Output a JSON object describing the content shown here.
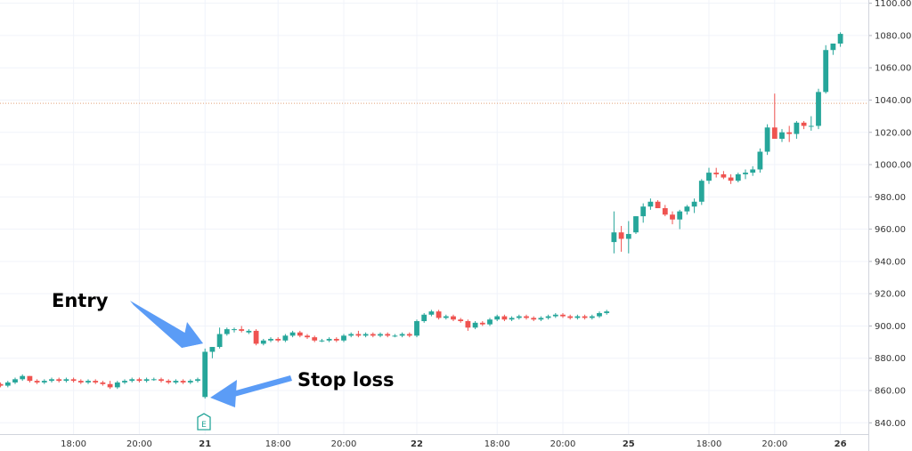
{
  "chart_data": {
    "type": "candlestick",
    "colors": {
      "up": "#26a69a",
      "down": "#ef5350",
      "grid": "#f0f3fa",
      "axis_text": "#333333",
      "annotation": "#000000",
      "arrow": "#5b9cf6",
      "marker": "#26a69a",
      "price_line": "#e2a07a"
    },
    "y_axis": {
      "position": "right",
      "ticks": [
        "1100.00",
        "1080.00",
        "1060.00",
        "1040.00",
        "1020.00",
        "1000.00",
        "980.00",
        "960.00",
        "940.00",
        "920.00",
        "900.00",
        "880.00",
        "860.00",
        "840.00"
      ],
      "range": [
        833,
        1102
      ]
    },
    "x_axis": {
      "ticks": [
        {
          "label": "18:00",
          "index": 10,
          "bold": false
        },
        {
          "label": "20:00",
          "index": 19,
          "bold": false
        },
        {
          "label": "21",
          "index": 28,
          "bold": true
        },
        {
          "label": "18:00",
          "index": 38,
          "bold": false
        },
        {
          "label": "20:00",
          "index": 47,
          "bold": false
        },
        {
          "label": "22",
          "index": 57,
          "bold": true
        },
        {
          "label": "18:00",
          "index": 68,
          "bold": false
        },
        {
          "label": "20:00",
          "index": 77,
          "bold": false
        },
        {
          "label": "25",
          "index": 86,
          "bold": true
        },
        {
          "label": "18:00",
          "index": 97,
          "bold": false
        },
        {
          "label": "20:00",
          "index": 106,
          "bold": false
        },
        {
          "label": "26",
          "index": 115,
          "bold": true
        }
      ]
    },
    "price_line": 1038,
    "candles": [
      [
        864,
        865,
        862,
        863
      ],
      [
        863,
        866,
        862,
        865
      ],
      [
        865,
        868,
        864,
        867
      ],
      [
        867,
        870,
        866,
        869
      ],
      [
        869,
        869,
        865,
        866
      ],
      [
        866,
        867,
        864,
        865
      ],
      [
        865,
        867,
        864,
        866
      ],
      [
        866,
        868,
        865,
        867
      ],
      [
        867,
        868,
        865,
        866
      ],
      [
        866,
        868,
        865,
        867
      ],
      [
        867,
        868,
        865,
        866
      ],
      [
        866,
        867,
        864,
        865
      ],
      [
        865,
        867,
        864,
        866
      ],
      [
        866,
        867,
        864,
        865
      ],
      [
        865,
        866,
        863,
        864
      ],
      [
        864,
        866,
        861,
        862
      ],
      [
        862,
        866,
        861,
        865
      ],
      [
        865,
        867,
        864,
        866
      ],
      [
        866,
        868,
        865,
        867
      ],
      [
        867,
        868,
        865,
        866
      ],
      [
        866,
        868,
        865,
        867
      ],
      [
        867,
        868,
        866,
        867
      ],
      [
        867,
        868,
        865,
        866
      ],
      [
        866,
        867,
        864,
        865
      ],
      [
        865,
        867,
        864,
        866
      ],
      [
        866,
        867,
        864,
        865
      ],
      [
        865,
        867,
        864,
        866
      ],
      [
        866,
        868,
        865,
        867
      ],
      [
        856,
        886,
        855,
        884
      ],
      [
        884,
        887,
        880,
        887
      ],
      [
        887,
        899,
        886,
        895
      ],
      [
        895,
        899,
        894,
        898
      ],
      [
        898,
        899,
        896,
        898
      ],
      [
        898,
        900,
        896,
        897
      ],
      [
        896,
        898,
        895,
        897
      ],
      [
        897,
        898,
        888,
        889
      ],
      [
        889,
        892,
        888,
        891
      ],
      [
        891,
        893,
        890,
        892
      ],
      [
        892,
        893,
        890,
        891
      ],
      [
        891,
        895,
        890,
        894
      ],
      [
        894,
        897,
        893,
        896
      ],
      [
        896,
        897,
        893,
        894
      ],
      [
        894,
        895,
        892,
        893
      ],
      [
        893,
        894,
        890,
        891
      ],
      [
        891,
        892,
        890,
        891
      ],
      [
        891,
        893,
        890,
        892
      ],
      [
        892,
        893,
        890,
        891
      ],
      [
        891,
        895,
        890,
        894
      ],
      [
        894,
        896,
        893,
        895
      ],
      [
        895,
        897,
        893,
        894
      ],
      [
        894,
        896,
        893,
        895
      ],
      [
        895,
        896,
        893,
        894
      ],
      [
        894,
        896,
        893,
        895
      ],
      [
        895,
        896,
        893,
        894
      ],
      [
        894,
        895,
        893,
        894
      ],
      [
        894,
        896,
        893,
        895
      ],
      [
        895,
        896,
        893,
        894
      ],
      [
        894,
        904,
        893,
        903
      ],
      [
        903,
        908,
        902,
        907
      ],
      [
        907,
        910,
        906,
        909
      ],
      [
        909,
        910,
        904,
        905
      ],
      [
        905,
        907,
        904,
        906
      ],
      [
        906,
        907,
        903,
        904
      ],
      [
        904,
        905,
        902,
        903
      ],
      [
        903,
        904,
        897,
        899
      ],
      [
        899,
        903,
        898,
        902
      ],
      [
        902,
        903,
        900,
        901
      ],
      [
        901,
        905,
        900,
        904
      ],
      [
        904,
        907,
        903,
        906
      ],
      [
        906,
        907,
        903,
        904
      ],
      [
        904,
        906,
        903,
        905
      ],
      [
        905,
        907,
        904,
        906
      ],
      [
        906,
        907,
        904,
        905
      ],
      [
        905,
        906,
        903,
        904
      ],
      [
        904,
        906,
        903,
        905
      ],
      [
        905,
        907,
        904,
        906
      ],
      [
        906,
        908,
        905,
        907
      ],
      [
        907,
        908,
        905,
        906
      ],
      [
        906,
        907,
        904,
        905
      ],
      [
        905,
        907,
        904,
        906
      ],
      [
        906,
        907,
        904,
        905
      ],
      [
        905,
        907,
        904,
        906
      ],
      [
        906,
        909,
        905,
        908
      ],
      [
        908,
        910,
        907,
        909
      ],
      [
        952,
        971,
        945,
        958
      ],
      [
        958,
        962,
        946,
        954
      ],
      [
        954,
        965,
        945,
        957
      ],
      [
        958,
        968,
        957,
        968
      ],
      [
        968,
        976,
        964,
        974
      ],
      [
        974,
        979,
        972,
        977
      ],
      [
        977,
        978,
        973,
        973
      ],
      [
        973,
        975,
        968,
        969
      ],
      [
        969,
        971,
        963,
        966
      ],
      [
        966,
        972,
        960,
        971
      ],
      [
        971,
        975,
        969,
        974
      ],
      [
        974,
        979,
        970,
        977
      ],
      [
        977,
        991,
        975,
        990
      ],
      [
        990,
        998,
        988,
        995
      ],
      [
        995,
        998,
        992,
        994
      ],
      [
        994,
        996,
        991,
        992
      ],
      [
        992,
        994,
        988,
        990
      ],
      [
        990,
        995,
        989,
        994
      ],
      [
        994,
        997,
        991,
        995
      ],
      [
        995,
        999,
        993,
        997
      ],
      [
        997,
        1010,
        995,
        1008
      ],
      [
        1008,
        1025,
        1006,
        1023
      ],
      [
        1023,
        1044,
        1018,
        1016
      ],
      [
        1016,
        1022,
        1014,
        1020
      ],
      [
        1020,
        1024,
        1014,
        1019
      ],
      [
        1019,
        1027,
        1016,
        1026
      ],
      [
        1026,
        1027,
        1022,
        1024
      ],
      [
        1024,
        1030,
        1021,
        1024
      ],
      [
        1024,
        1047,
        1022,
        1045
      ],
      [
        1045,
        1074,
        1044,
        1071
      ],
      [
        1071,
        1075,
        1068,
        1075
      ],
      [
        1075,
        1082,
        1073,
        1081
      ]
    ],
    "annotations": [
      {
        "text": "Entry"
      },
      {
        "text": "Stop loss"
      }
    ],
    "marker": {
      "label": "E",
      "index": 28
    }
  }
}
